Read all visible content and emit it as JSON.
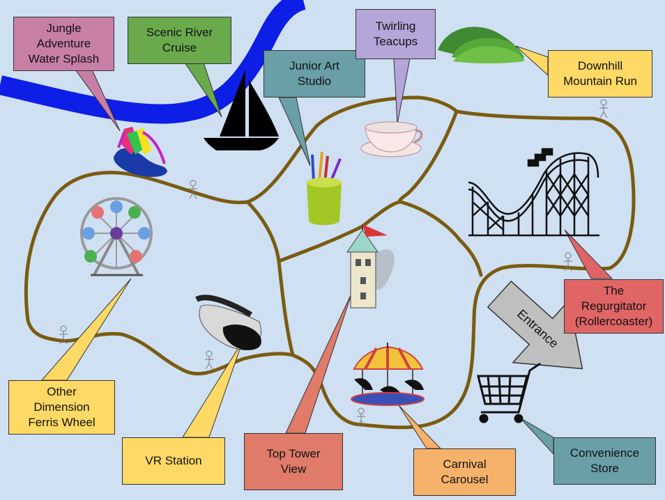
{
  "colors": {
    "background": "#cfe0f3",
    "river": "#0d1ee6",
    "path": "#7a5c10"
  },
  "entrance": {
    "label": "Entrance",
    "icon": "arrow-icon"
  },
  "attractions": [
    {
      "id": "jungle",
      "label": "Jungle\nAdventure\nWater Splash",
      "color": "#c87fa6",
      "icon": "water-slide-icon"
    },
    {
      "id": "river",
      "label": "Scenic River\nCruise",
      "color": "#6aaa4d",
      "icon": "sailboat-icon"
    },
    {
      "id": "art",
      "label": "Junior Art\nStudio",
      "color": "#6a9fa8",
      "icon": "pencil-cup-icon"
    },
    {
      "id": "teacups",
      "label": "Twirling\nTeacups",
      "color": "#b4a6d8",
      "icon": "teacup-icon"
    },
    {
      "id": "downhill",
      "label": "Downhill\nMountain Run",
      "color": "#ffd966",
      "icon": "hills-icon"
    },
    {
      "id": "regurgitator",
      "label": "The\nRegurgitator\n(Rollercoaster)",
      "color": "#e06666",
      "icon": "rollercoaster-icon"
    },
    {
      "id": "ferris",
      "label": "Other\nDimension\nFerris Wheel",
      "color": "#ffd966",
      "icon": "ferris-wheel-icon"
    },
    {
      "id": "vr",
      "label": "VR Station",
      "color": "#ffd966",
      "icon": "vr-headset-icon"
    },
    {
      "id": "tower",
      "label": "Top Tower\nView",
      "color": "#e07b6a",
      "icon": "tower-icon"
    },
    {
      "id": "carousel",
      "label": "Carnival\nCarousel",
      "color": "#f6b26b",
      "icon": "carousel-icon"
    },
    {
      "id": "store",
      "label": "Convenience\nStore",
      "color": "#6a9fa8",
      "icon": "shopping-cart-icon"
    }
  ]
}
